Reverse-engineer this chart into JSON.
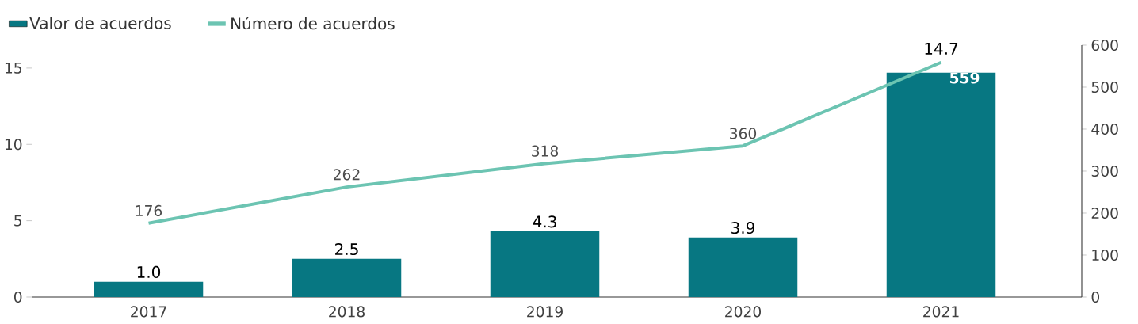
{
  "chart_data": {
    "type": "bar",
    "categories": [
      "2017",
      "2018",
      "2019",
      "2020",
      "2021"
    ],
    "series": [
      {
        "name": "Valor de acuerdos",
        "type": "bar",
        "color": "#077782",
        "values": [
          1.0,
          2.5,
          4.3,
          3.9,
          14.7
        ],
        "value_labels": [
          "1.0",
          "2.5",
          "4.3",
          "3.9",
          "14.7"
        ]
      },
      {
        "name": "Número de acuerdos",
        "type": "line",
        "axis": "y2",
        "color": "#6cc4b2",
        "values": [
          176,
          262,
          318,
          360,
          559
        ],
        "value_labels": [
          "176",
          "262",
          "318",
          "360",
          "559"
        ]
      }
    ],
    "ylim": [
      0,
      16.5
    ],
    "yticks": [
      0,
      5,
      10,
      15
    ],
    "y2lim": [
      0,
      600
    ],
    "y2ticks": [
      0,
      100,
      200,
      300,
      400,
      500,
      600
    ],
    "legend": "top left",
    "grid": false,
    "marker": "none"
  }
}
